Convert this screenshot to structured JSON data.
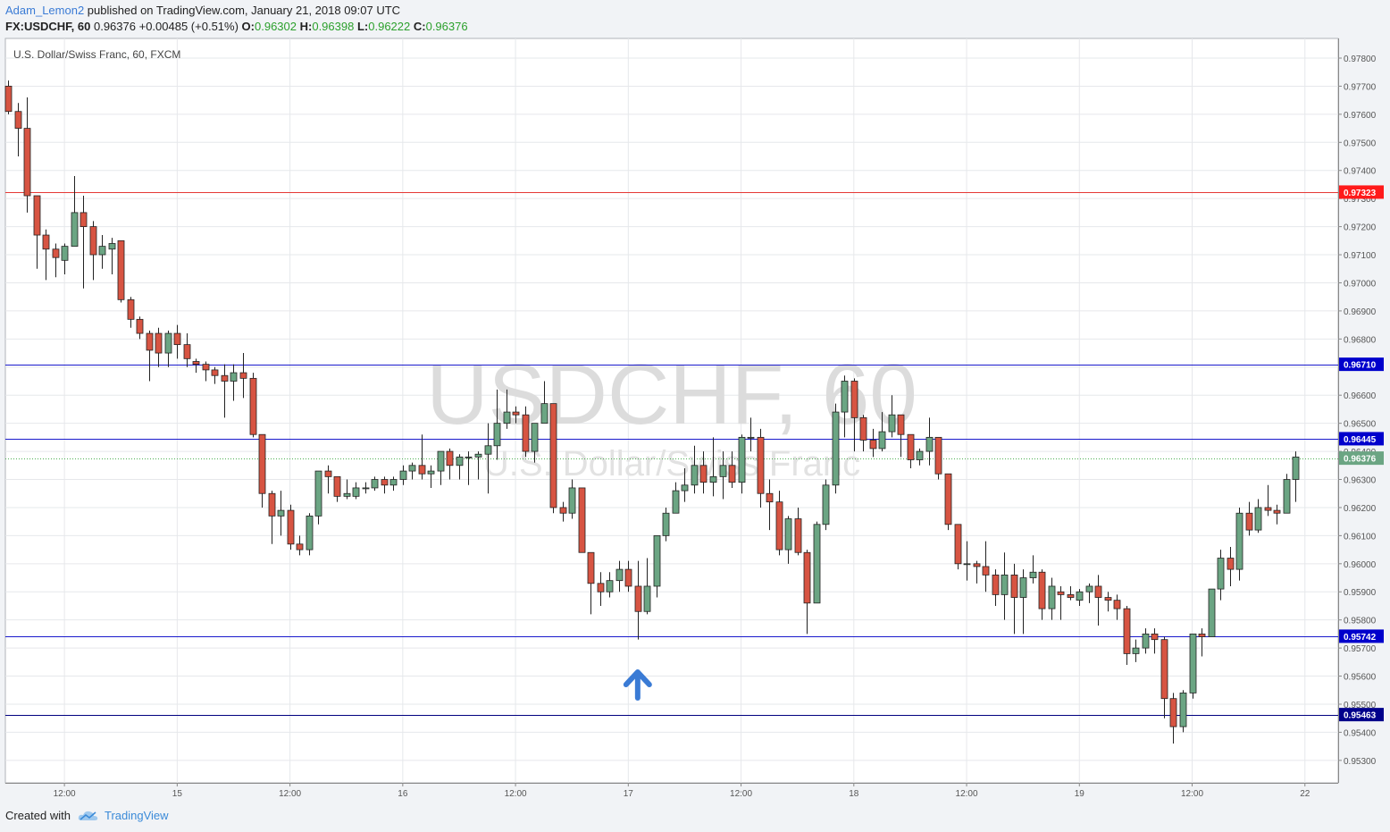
{
  "header": {
    "author": "Adam_Lemon2",
    "published_text": "published on TradingView.com, January 21, 2018 09:07 UTC",
    "symbol_interval": "FX:USDCHF, 60",
    "last_price": "0.96376",
    "change": "+0.00485 (+0.51%)",
    "o_label": "O:",
    "o_value": "0.96302",
    "h_label": "H:",
    "h_value": "0.96398",
    "l_label": "L:",
    "l_value": "0.96222",
    "c_label": "C:",
    "c_value": "0.96376"
  },
  "footer": {
    "created_with": "Created with",
    "brand": "TradingView"
  },
  "colors": {
    "up": "#6ba583",
    "down": "#d75442",
    "outline": "#222222",
    "resistance_red": "#e53935",
    "level_blue": "#1a1acc",
    "price_blue": "#0000cc",
    "arrow": "#3a7bd5"
  },
  "chart_data": {
    "type": "candlestick",
    "title": "U.S. Dollar/Swiss Franc, 60, FXCM",
    "watermark_main": "USDCHF, 60",
    "watermark_sub": "U.S. Dollar/Swiss Franc",
    "y_range": [
      0.9522,
      0.9787
    ],
    "y_ticks": [
      "0.97800",
      "0.97700",
      "0.97600",
      "0.97500",
      "0.97400",
      "0.97300",
      "0.97200",
      "0.97100",
      "0.97000",
      "0.96900",
      "0.96800",
      "0.96700",
      "0.96600",
      "0.96500",
      "0.96400",
      "0.96300",
      "0.96200",
      "0.96100",
      "0.96000",
      "0.95900",
      "0.95800",
      "0.95700",
      "0.95600",
      "0.95500",
      "0.95400",
      "0.95300"
    ],
    "x_labels": [
      {
        "label": "12:00",
        "i": 6
      },
      {
        "label": "15",
        "i": 18
      },
      {
        "label": "12:00",
        "i": 30
      },
      {
        "label": "16",
        "i": 42
      },
      {
        "label": "12:00",
        "i": 54
      },
      {
        "label": "17",
        "i": 66
      },
      {
        "label": "12:00",
        "i": 78
      },
      {
        "label": "18",
        "i": 90
      },
      {
        "label": "12:00",
        "i": 102
      },
      {
        "label": "19",
        "i": 114
      },
      {
        "label": "12:00",
        "i": 126
      },
      {
        "label": "22",
        "i": 138
      }
    ],
    "levels": [
      {
        "value": 0.97323,
        "label": "0.97323",
        "color": "red"
      },
      {
        "value": 0.9671,
        "label": "0.96710",
        "color": "blue"
      },
      {
        "value": 0.96445,
        "label": "0.96445",
        "color": "blue"
      },
      {
        "value": 0.95742,
        "label": "0.95742",
        "color": "blue"
      },
      {
        "value": 0.95463,
        "label": "0.95463",
        "color": "navy"
      }
    ],
    "last_price": {
      "value": 0.96376,
      "label": "0.96376"
    },
    "arrow_at_index": 67,
    "candles": [
      [
        0.977,
        0.9772,
        0.976,
        0.9761
      ],
      [
        0.9761,
        0.9764,
        0.9745,
        0.9755
      ],
      [
        0.9755,
        0.9766,
        0.9725,
        0.9731
      ],
      [
        0.9731,
        0.9731,
        0.9705,
        0.9717
      ],
      [
        0.9717,
        0.9719,
        0.9701,
        0.9712
      ],
      [
        0.9712,
        0.9714,
        0.9702,
        0.9709
      ],
      [
        0.9708,
        0.9714,
        0.9703,
        0.9713
      ],
      [
        0.9713,
        0.9738,
        0.9713,
        0.9725
      ],
      [
        0.9725,
        0.9731,
        0.9698,
        0.972
      ],
      [
        0.972,
        0.9722,
        0.9701,
        0.971
      ],
      [
        0.971,
        0.9717,
        0.9705,
        0.9713
      ],
      [
        0.9712,
        0.9716,
        0.9703,
        0.9714
      ],
      [
        0.9715,
        0.9715,
        0.9693,
        0.9694
      ],
      [
        0.9694,
        0.9695,
        0.9684,
        0.9687
      ],
      [
        0.9687,
        0.9688,
        0.968,
        0.9682
      ],
      [
        0.9682,
        0.9683,
        0.9665,
        0.9676
      ],
      [
        0.9682,
        0.9684,
        0.967,
        0.9675
      ],
      [
        0.9675,
        0.9683,
        0.967,
        0.9682
      ],
      [
        0.9682,
        0.9685,
        0.9673,
        0.9678
      ],
      [
        0.9678,
        0.9682,
        0.967,
        0.9673
      ],
      [
        0.9672,
        0.9673,
        0.9668,
        0.9671
      ],
      [
        0.9671,
        0.9672,
        0.9665,
        0.9669
      ],
      [
        0.9669,
        0.967,
        0.9664,
        0.9667
      ],
      [
        0.9667,
        0.9671,
        0.9652,
        0.9665
      ],
      [
        0.9665,
        0.9671,
        0.9658,
        0.9668
      ],
      [
        0.9668,
        0.9675,
        0.9659,
        0.9666
      ],
      [
        0.9666,
        0.9668,
        0.9645,
        0.9646
      ],
      [
        0.9646,
        0.9646,
        0.962,
        0.9625
      ],
      [
        0.9625,
        0.9626,
        0.9607,
        0.9617
      ],
      [
        0.9617,
        0.9626,
        0.961,
        0.9619
      ],
      [
        0.9619,
        0.9621,
        0.9605,
        0.9607
      ],
      [
        0.9607,
        0.961,
        0.9603,
        0.9605
      ],
      [
        0.9605,
        0.9618,
        0.9603,
        0.9617
      ],
      [
        0.9617,
        0.9633,
        0.9614,
        0.9633
      ],
      [
        0.9633,
        0.9635,
        0.9625,
        0.9631
      ],
      [
        0.9631,
        0.9631,
        0.9622,
        0.9624
      ],
      [
        0.9624,
        0.963,
        0.9623,
        0.9625
      ],
      [
        0.9624,
        0.9629,
        0.9623,
        0.9627
      ],
      [
        0.9627,
        0.9629,
        0.9625,
        0.9627
      ],
      [
        0.9627,
        0.9631,
        0.9626,
        0.963
      ],
      [
        0.963,
        0.9631,
        0.9625,
        0.9628
      ],
      [
        0.9628,
        0.9631,
        0.9626,
        0.963
      ],
      [
        0.963,
        0.9635,
        0.9628,
        0.9633
      ],
      [
        0.9633,
        0.9636,
        0.963,
        0.9635
      ],
      [
        0.9635,
        0.9646,
        0.963,
        0.9632
      ],
      [
        0.9632,
        0.9635,
        0.9627,
        0.9633
      ],
      [
        0.9633,
        0.964,
        0.9628,
        0.964
      ],
      [
        0.964,
        0.9641,
        0.963,
        0.9635
      ],
      [
        0.9635,
        0.9639,
        0.963,
        0.9638
      ],
      [
        0.9638,
        0.964,
        0.9628,
        0.9638
      ],
      [
        0.9638,
        0.964,
        0.963,
        0.9639
      ],
      [
        0.9639,
        0.965,
        0.9625,
        0.9642
      ],
      [
        0.9642,
        0.9662,
        0.9637,
        0.965
      ],
      [
        0.965,
        0.9662,
        0.9648,
        0.9654
      ],
      [
        0.9654,
        0.9656,
        0.965,
        0.9653
      ],
      [
        0.9653,
        0.9656,
        0.9638,
        0.964
      ],
      [
        0.964,
        0.965,
        0.9636,
        0.965
      ],
      [
        0.965,
        0.9665,
        0.965,
        0.9657
      ],
      [
        0.9657,
        0.9657,
        0.9618,
        0.962
      ],
      [
        0.962,
        0.9622,
        0.9615,
        0.9618
      ],
      [
        0.9618,
        0.963,
        0.9616,
        0.9627
      ],
      [
        0.9627,
        0.9627,
        0.9604,
        0.9604
      ],
      [
        0.9604,
        0.9604,
        0.9582,
        0.9593
      ],
      [
        0.9593,
        0.9597,
        0.9585,
        0.959
      ],
      [
        0.959,
        0.9597,
        0.9588,
        0.9594
      ],
      [
        0.9594,
        0.9601,
        0.959,
        0.9598
      ],
      [
        0.9598,
        0.9601,
        0.959,
        0.9592
      ],
      [
        0.9592,
        0.9601,
        0.9573,
        0.9583
      ],
      [
        0.9583,
        0.9602,
        0.9582,
        0.9592
      ],
      [
        0.9592,
        0.961,
        0.9588,
        0.961
      ],
      [
        0.961,
        0.962,
        0.9608,
        0.9618
      ],
      [
        0.9618,
        0.9629,
        0.9618,
        0.9626
      ],
      [
        0.9626,
        0.9634,
        0.9622,
        0.9628
      ],
      [
        0.9628,
        0.9642,
        0.9625,
        0.9635
      ],
      [
        0.9635,
        0.964,
        0.9625,
        0.9629
      ],
      [
        0.9629,
        0.9645,
        0.9624,
        0.9631
      ],
      [
        0.9631,
        0.964,
        0.9623,
        0.9635
      ],
      [
        0.9635,
        0.964,
        0.9627,
        0.9629
      ],
      [
        0.9629,
        0.9646,
        0.9625,
        0.9645
      ],
      [
        0.9645,
        0.9652,
        0.964,
        0.9645
      ],
      [
        0.9645,
        0.9648,
        0.962,
        0.9625
      ],
      [
        0.9625,
        0.963,
        0.9612,
        0.9622
      ],
      [
        0.9622,
        0.9626,
        0.9603,
        0.9605
      ],
      [
        0.9605,
        0.9617,
        0.96,
        0.9616
      ],
      [
        0.9616,
        0.962,
        0.9603,
        0.9604
      ],
      [
        0.9604,
        0.9605,
        0.9575,
        0.9586
      ],
      [
        0.9586,
        0.9615,
        0.9586,
        0.9614
      ],
      [
        0.9614,
        0.963,
        0.9612,
        0.9628
      ],
      [
        0.9628,
        0.9657,
        0.9625,
        0.9654
      ],
      [
        0.9654,
        0.9667,
        0.9645,
        0.9665
      ],
      [
        0.9665,
        0.9666,
        0.964,
        0.9652
      ],
      [
        0.9652,
        0.9653,
        0.964,
        0.9644
      ],
      [
        0.9644,
        0.9648,
        0.9638,
        0.9641
      ],
      [
        0.9641,
        0.9654,
        0.964,
        0.9647
      ],
      [
        0.9647,
        0.966,
        0.9645,
        0.9653
      ],
      [
        0.9653,
        0.9653,
        0.9638,
        0.9646
      ],
      [
        0.9646,
        0.9646,
        0.9634,
        0.9637
      ],
      [
        0.9637,
        0.9641,
        0.9635,
        0.964
      ],
      [
        0.964,
        0.9652,
        0.9635,
        0.9645
      ],
      [
        0.9645,
        0.9645,
        0.963,
        0.9632
      ],
      [
        0.9632,
        0.9632,
        0.9612,
        0.9614
      ],
      [
        0.9614,
        0.9614,
        0.9598,
        0.96
      ],
      [
        0.96,
        0.9608,
        0.9594,
        0.96
      ],
      [
        0.96,
        0.9601,
        0.9593,
        0.9599
      ],
      [
        0.9599,
        0.9608,
        0.959,
        0.9596
      ],
      [
        0.9596,
        0.9598,
        0.9585,
        0.9589
      ],
      [
        0.9589,
        0.9604,
        0.958,
        0.9596
      ],
      [
        0.9596,
        0.96,
        0.9575,
        0.9588
      ],
      [
        0.9588,
        0.9598,
        0.9575,
        0.9595
      ],
      [
        0.9595,
        0.9603,
        0.9593,
        0.9597
      ],
      [
        0.9597,
        0.9598,
        0.958,
        0.9584
      ],
      [
        0.9584,
        0.9595,
        0.958,
        0.9592
      ],
      [
        0.959,
        0.9592,
        0.958,
        0.9589
      ],
      [
        0.9589,
        0.9592,
        0.9587,
        0.9588
      ],
      [
        0.9587,
        0.9591,
        0.9585,
        0.959
      ],
      [
        0.959,
        0.9593,
        0.9586,
        0.9592
      ],
      [
        0.9592,
        0.9596,
        0.9578,
        0.9588
      ],
      [
        0.9588,
        0.959,
        0.9583,
        0.9587
      ],
      [
        0.9587,
        0.9589,
        0.958,
        0.9584
      ],
      [
        0.9584,
        0.9585,
        0.9564,
        0.9568
      ],
      [
        0.9568,
        0.9573,
        0.9565,
        0.957
      ],
      [
        0.957,
        0.9577,
        0.9568,
        0.9575
      ],
      [
        0.9575,
        0.9577,
        0.9568,
        0.9573
      ],
      [
        0.9573,
        0.9574,
        0.9545,
        0.9552
      ],
      [
        0.9552,
        0.9554,
        0.9536,
        0.9542
      ],
      [
        0.9542,
        0.9555,
        0.954,
        0.9554
      ],
      [
        0.9554,
        0.9575,
        0.9552,
        0.9575
      ],
      [
        0.9575,
        0.9577,
        0.9567,
        0.9574
      ],
      [
        0.9574,
        0.9591,
        0.9574,
        0.9591
      ],
      [
        0.9591,
        0.9605,
        0.9587,
        0.9602
      ],
      [
        0.9602,
        0.9606,
        0.9592,
        0.9598
      ],
      [
        0.9598,
        0.962,
        0.9594,
        0.9618
      ],
      [
        0.9618,
        0.9622,
        0.961,
        0.9612
      ],
      [
        0.9612,
        0.9623,
        0.9611,
        0.962
      ],
      [
        0.962,
        0.9628,
        0.9617,
        0.9619
      ],
      [
        0.9619,
        0.9621,
        0.9614,
        0.9618
      ],
      [
        0.9618,
        0.9632,
        0.9618,
        0.963
      ],
      [
        0.963,
        0.964,
        0.9622,
        0.9638
      ]
    ]
  }
}
